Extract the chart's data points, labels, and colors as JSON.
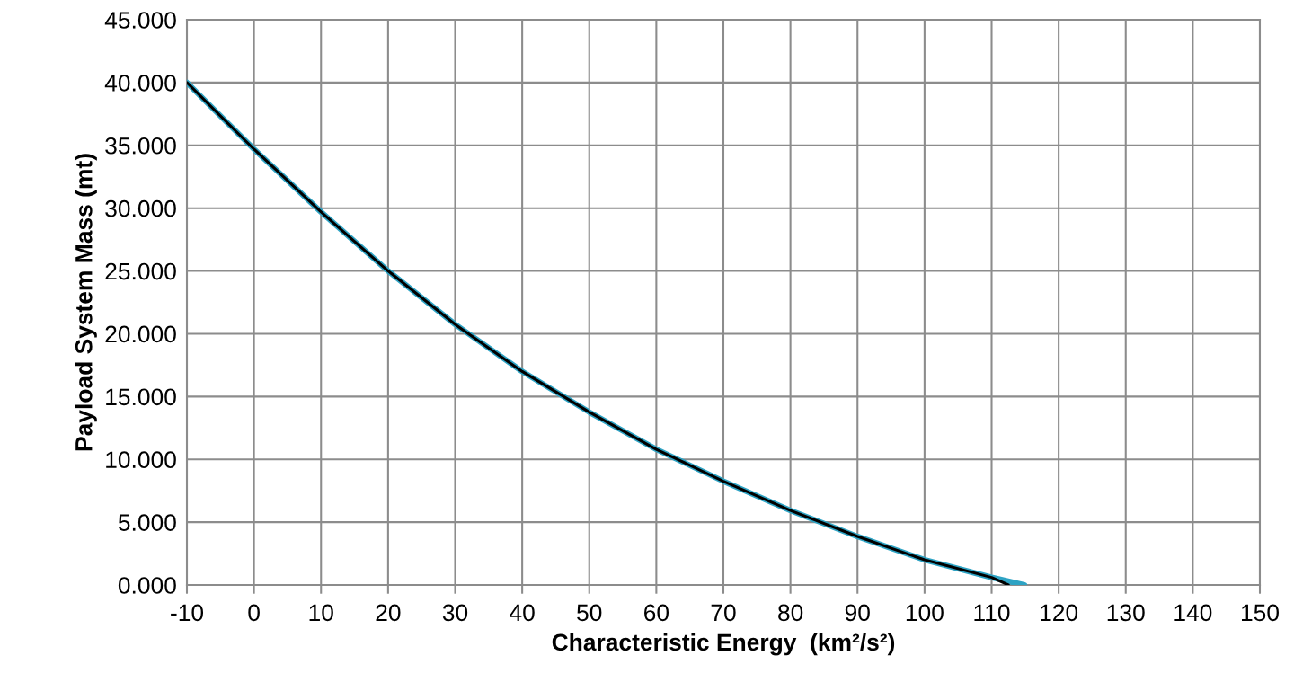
{
  "chart_data": {
    "type": "line",
    "xlabel": "Characteristic Energy  (km²/s²)",
    "ylabel": "Payload System Mass (mt)",
    "series": [
      {
        "color": "#2ea3c4",
        "x": [
          -10,
          0,
          10,
          20,
          30,
          40,
          50,
          60,
          70,
          80,
          90,
          100,
          110,
          114.9
        ],
        "values": [
          40.0,
          34.7,
          29.7,
          25.0,
          20.75,
          17.0,
          13.76,
          10.8,
          8.26,
          5.93,
          3.86,
          2.0,
          0.6,
          0.0
        ]
      },
      {
        "color": "#000000",
        "x": [
          -10,
          0,
          10,
          20,
          30,
          40,
          50,
          60,
          70,
          80,
          90,
          100,
          110,
          112.5
        ],
        "values": [
          40.0,
          34.7,
          29.7,
          25.0,
          20.75,
          17.0,
          13.76,
          10.8,
          8.26,
          5.93,
          3.86,
          2.0,
          0.6,
          0.0
        ]
      }
    ],
    "xlim": [
      -10,
      150
    ],
    "xticks": [
      -10,
      0,
      10,
      20,
      30,
      40,
      50,
      60,
      70,
      80,
      90,
      100,
      110,
      120,
      130,
      140,
      150
    ],
    "ylim": [
      0,
      45
    ],
    "yticks": [
      {
        "value": 0,
        "label": "0.000"
      },
      {
        "value": 5,
        "label": "5.000"
      },
      {
        "value": 10,
        "label": "10.000"
      },
      {
        "value": 15,
        "label": "15.000"
      },
      {
        "value": 20,
        "label": "20.000"
      },
      {
        "value": 25,
        "label": "25.000"
      },
      {
        "value": 30,
        "label": "30.000"
      },
      {
        "value": 35,
        "label": "35.000"
      },
      {
        "value": 40,
        "label": "40.000"
      },
      {
        "value": 45,
        "label": "45.000"
      }
    ],
    "grid": true,
    "marker": "none",
    "line_style": "solid"
  }
}
